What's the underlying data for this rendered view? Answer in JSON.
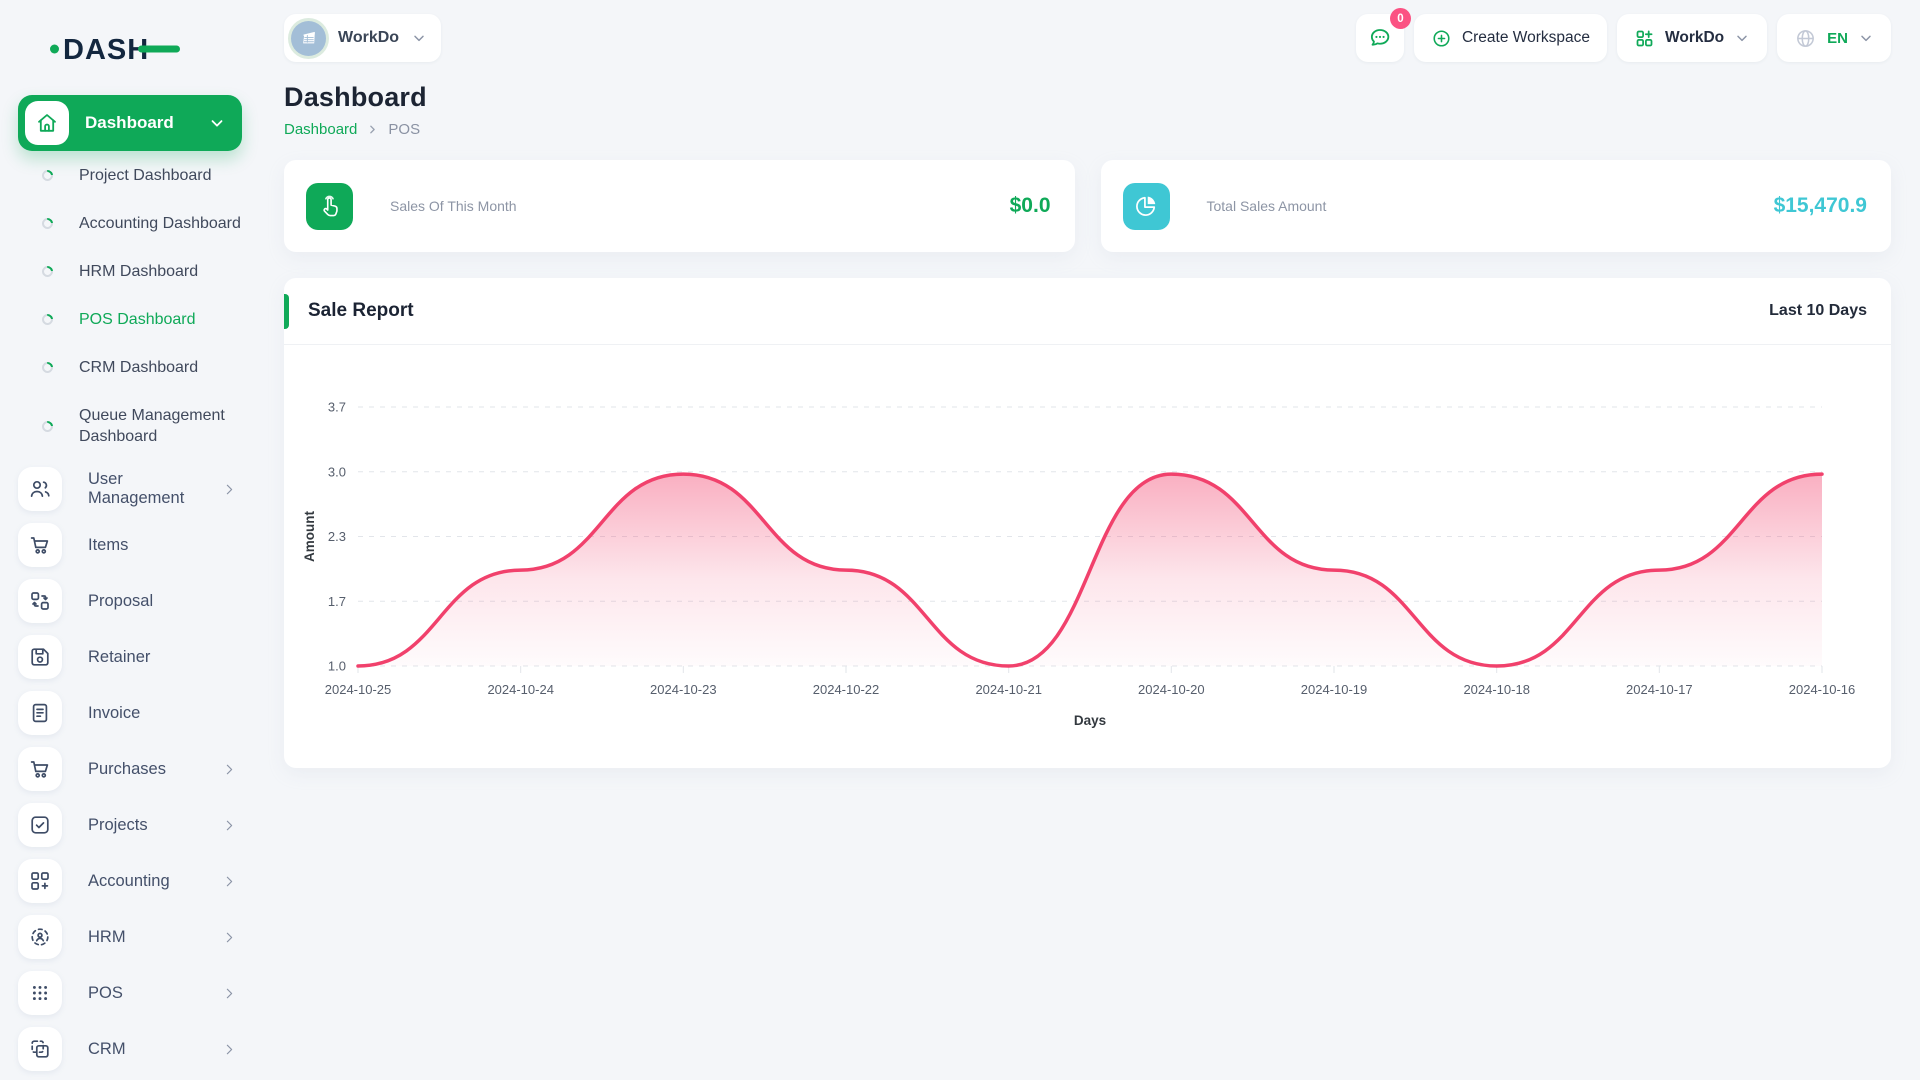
{
  "brand": {
    "logo_text": "DASH",
    "accent": "#0FA958",
    "navy": "#13273F"
  },
  "topbar": {
    "workspace_pill": {
      "label": "WorkDo"
    },
    "messages_badge": "0",
    "create_workspace_label": "Create Workspace",
    "workspace_switcher_label": "WorkDo",
    "language_code": "EN"
  },
  "sidebar": {
    "dashboard": {
      "label": "Dashboard"
    },
    "dashboard_children": [
      {
        "label": "Project Dashboard",
        "active": false
      },
      {
        "label": "Accounting Dashboard",
        "active": false
      },
      {
        "label": "HRM Dashboard",
        "active": false
      },
      {
        "label": "POS Dashboard",
        "active": true
      },
      {
        "label": "CRM Dashboard",
        "active": false
      },
      {
        "label": "Queue Management Dashboard",
        "active": false
      }
    ],
    "items": [
      {
        "label": "User Management",
        "icon": "users-icon",
        "chevron": true
      },
      {
        "label": "Items",
        "icon": "cart-icon",
        "chevron": false
      },
      {
        "label": "Proposal",
        "icon": "proposal-icon",
        "chevron": false
      },
      {
        "label": "Retainer",
        "icon": "retainer-icon",
        "chevron": false
      },
      {
        "label": "Invoice",
        "icon": "invoice-icon",
        "chevron": false
      },
      {
        "label": "Purchases",
        "icon": "cart-icon",
        "chevron": true
      },
      {
        "label": "Projects",
        "icon": "projects-icon",
        "chevron": true
      },
      {
        "label": "Accounting",
        "icon": "accounting-icon",
        "chevron": true
      },
      {
        "label": "HRM",
        "icon": "hrm-icon",
        "chevron": true
      },
      {
        "label": "POS",
        "icon": "pos-icon",
        "chevron": true
      },
      {
        "label": "CRM",
        "icon": "crm-icon",
        "chevron": true
      }
    ]
  },
  "page": {
    "title": "Dashboard",
    "breadcrumb_link": "Dashboard",
    "breadcrumb_current": "POS"
  },
  "stats": [
    {
      "label": "Sales Of This Month",
      "value": "$0.0",
      "icon": "tap-icon",
      "accent": "#0FA958"
    },
    {
      "label": "Total Sales Amount",
      "value": "$15,470.9",
      "icon": "pie-chart-icon",
      "accent": "#3FC7D4"
    }
  ],
  "chart_card": {
    "title": "Sale Report",
    "range_label": "Last 10 Days"
  },
  "chart_data": {
    "type": "area",
    "title": "Sale Report",
    "x": [
      "2024-10-25",
      "2024-10-24",
      "2024-10-23",
      "2024-10-22",
      "2024-10-21",
      "2024-10-20",
      "2024-10-19",
      "2024-10-18",
      "2024-10-17",
      "2024-10-16"
    ],
    "values": [
      1,
      2,
      3,
      2,
      1,
      3,
      2,
      1,
      2,
      3
    ],
    "xlabel": "Days",
    "ylabel": "Amount",
    "ylim": [
      1.0,
      3.7
    ],
    "y_tick_labels": [
      "1.0",
      "1.7",
      "2.3",
      "3.0",
      "3.7"
    ],
    "grid": "dashed-horizontal",
    "legend": "none",
    "line_color": "#F1416C",
    "curve": "smooth-flat-tangent"
  },
  "colors": {
    "primary_green": "#0FA958",
    "cyan": "#3FC7D4",
    "pink_line": "#F1416C",
    "badge_pink": "#FB5283",
    "page_bg": "#F4F6F9"
  }
}
